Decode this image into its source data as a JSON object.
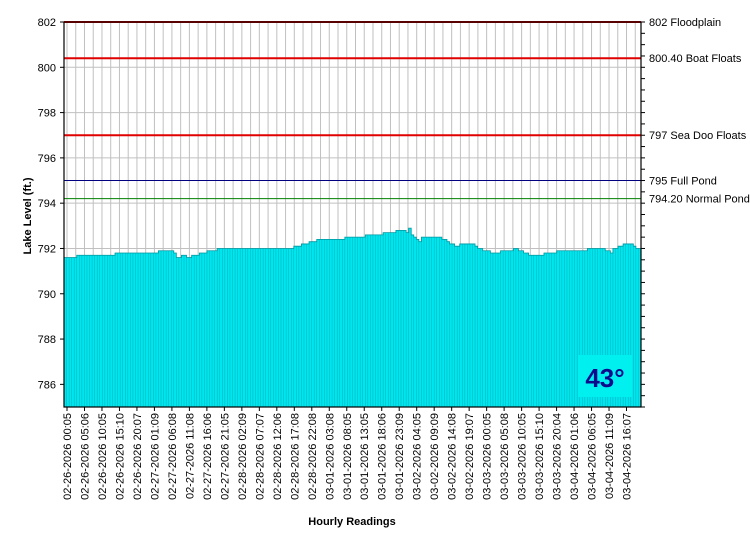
{
  "chart_data": {
    "type": "area",
    "title": "",
    "xlabel": "Hourly Readings",
    "ylabel": "Lake Level (ft.)",
    "ylim": [
      785,
      802
    ],
    "yticks": [
      786,
      788,
      790,
      792,
      794,
      796,
      798,
      800,
      802
    ],
    "grid": true,
    "x_tick_labels": [
      "02-26-2026 00:05",
      "02-26-2026 05:06",
      "02-26-2026 10:05",
      "02-26-2026 15:10",
      "02-26-2026 20:07",
      "02-27-2026 01:09",
      "02-27-2026 06:08",
      "02-27-2026 11:08",
      "02-27-2026 16:06",
      "02-27-2026 21:05",
      "02-28-2026 02:09",
      "02-28-2026 07:07",
      "02-28-2026 12:06",
      "02-28-2026 17:08",
      "02-28-2026 22:08",
      "03-01-2026 03:08",
      "03-01-2026 08:05",
      "03-01-2026 13:05",
      "03-01-2026 18:06",
      "03-01-2026 23:09",
      "03-02-2026 04:05",
      "03-02-2026 09:09",
      "03-02-2026 14:08",
      "03-02-2026 19:07",
      "03-03-2026 00:05",
      "03-03-2026 05:08",
      "03-03-2026 10:05",
      "03-03-2026 15:10",
      "03-03-2026 20:04",
      "03-04-2026 01:06",
      "03-04-2026 06:05",
      "03-04-2026 11:09",
      "03-04-2026 16:07"
    ],
    "series": [
      {
        "color": "#00e5ee",
        "x_start": "02-26-2026 00:05",
        "interval_hours": 1,
        "values": [
          791.6,
          791.6,
          791.6,
          791.6,
          791.6,
          791.7,
          791.7,
          791.7,
          791.7,
          791.7,
          791.7,
          791.7,
          791.7,
          791.7,
          791.7,
          791.7,
          791.7,
          791.7,
          791.7,
          791.7,
          791.8,
          791.8,
          791.8,
          791.8,
          791.8,
          791.8,
          791.8,
          791.8,
          791.8,
          791.8,
          791.8,
          791.8,
          791.8,
          791.8,
          791.8,
          791.8,
          791.8,
          791.9,
          791.9,
          791.9,
          791.9,
          791.9,
          791.9,
          791.8,
          791.6,
          791.6,
          791.7,
          791.7,
          791.6,
          791.6,
          791.7,
          791.7,
          791.7,
          791.8,
          791.8,
          791.8,
          791.9,
          791.9,
          791.9,
          791.9,
          792.0,
          792.0,
          792.0,
          792.0,
          792.0,
          792.0,
          792.0,
          792.0,
          792.0,
          792.0,
          792.0,
          792.0,
          792.0,
          792.0,
          792.0,
          792.0,
          792.0,
          792.0,
          792.0,
          792.0,
          792.0,
          792.0,
          792.0,
          792.0,
          792.0,
          792.0,
          792.0,
          792.0,
          792.0,
          792.0,
          792.1,
          792.1,
          792.1,
          792.2,
          792.2,
          792.2,
          792.3,
          792.3,
          792.3,
          792.4,
          792.4,
          792.4,
          792.4,
          792.4,
          792.4,
          792.4,
          792.4,
          792.4,
          792.4,
          792.4,
          792.5,
          792.5,
          792.5,
          792.5,
          792.5,
          792.5,
          792.5,
          792.5,
          792.6,
          792.6,
          792.6,
          792.6,
          792.6,
          792.6,
          792.6,
          792.7,
          792.7,
          792.7,
          792.7,
          792.7,
          792.8,
          792.8,
          792.8,
          792.8,
          792.7,
          792.9,
          792.6,
          792.5,
          792.4,
          792.3,
          792.5,
          792.5,
          792.5,
          792.5,
          792.5,
          792.5,
          792.5,
          792.5,
          792.4,
          792.4,
          792.3,
          792.2,
          792.2,
          792.1,
          792.1,
          792.2,
          792.2,
          792.2,
          792.2,
          792.2,
          792.2,
          792.1,
          792.0,
          792.0,
          791.9,
          791.9,
          791.9,
          791.8,
          791.8,
          791.8,
          791.8,
          791.9,
          791.9,
          791.9,
          791.9,
          791.9,
          792.0,
          792.0,
          791.9,
          791.9,
          791.8,
          791.8,
          791.7,
          791.7,
          791.7,
          791.7,
          791.7,
          791.7,
          791.8,
          791.8,
          791.8,
          791.8,
          791.8,
          791.9,
          791.9,
          791.9,
          791.9,
          791.9,
          791.9,
          791.9,
          791.9,
          791.9,
          791.9,
          791.9,
          791.9,
          792.0,
          792.0,
          792.0,
          792.0,
          792.0,
          792.0,
          792.0,
          791.9,
          791.9,
          791.8,
          792.0,
          792.0,
          792.1,
          792.1,
          792.2,
          792.2,
          792.2,
          792.2,
          792.1,
          792.0,
          792.0
        ]
      }
    ],
    "reference_lines": [
      {
        "value": 802,
        "label": "802 Floodplain",
        "color": "#e00000",
        "width": 2
      },
      {
        "value": 800.4,
        "label": "800.40 Boat Floats",
        "color": "#e00000",
        "width": 2
      },
      {
        "value": 797,
        "label": "797 Sea Doo Floats",
        "color": "#e00000",
        "width": 2
      },
      {
        "value": 795,
        "label": "795 Full Pond",
        "color": "#000080",
        "width": 1
      },
      {
        "value": 794.2,
        "label": "794.20 Normal Pond",
        "color": "#008000",
        "width": 1
      }
    ]
  },
  "badge": {
    "text": "43°",
    "background": "#00f0f0",
    "color": "#0b0b8c"
  }
}
